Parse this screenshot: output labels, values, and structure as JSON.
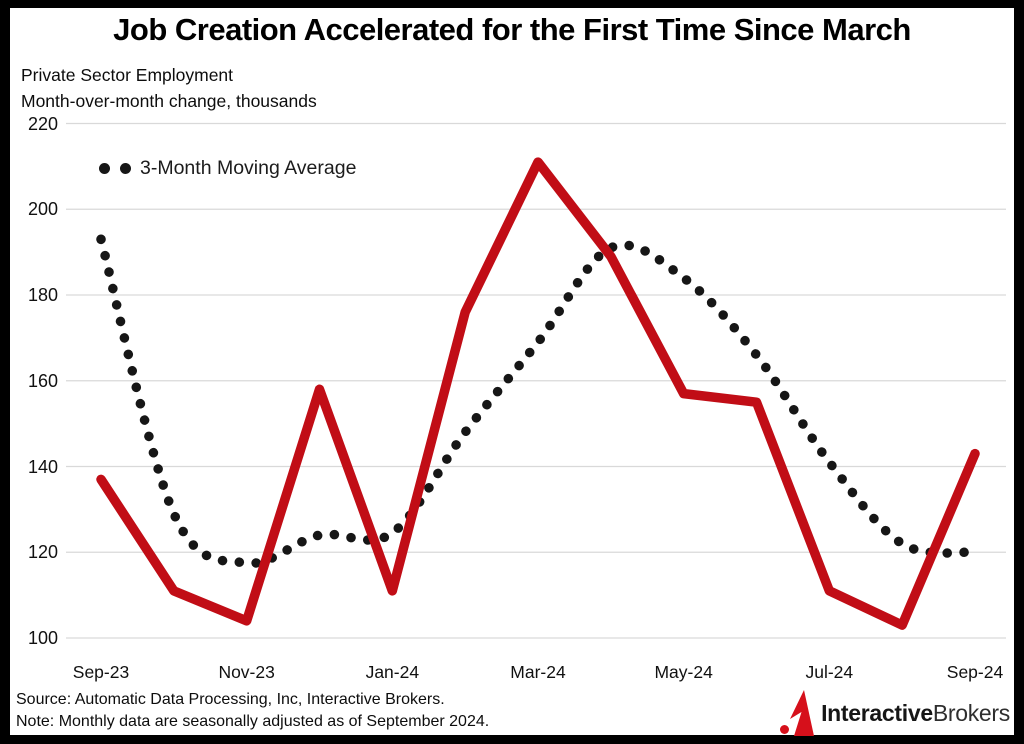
{
  "title": "Job Creation Accelerated for the First Time Since March",
  "subtitle_line1": "Private Sector Employment",
  "subtitle_line2": "Month-over-month change, thousands",
  "legend": {
    "label": "3-Month Moving Average"
  },
  "footer": {
    "source": "Source: Automatic Data Processing, Inc, Interactive Brokers.",
    "note": "Note: Monthly data are seasonally adjusted as of September 2024."
  },
  "logo": {
    "part1": "Interactive",
    "part2": "Brokers"
  },
  "colors": {
    "line_red": "#c10d16",
    "dots_black": "#161616",
    "grid": "#d9d9d9",
    "logo_red": "#d6101b",
    "background": "#ffffff",
    "frame": "#000000"
  },
  "chart_data": {
    "type": "line",
    "months": [
      "Sep-23",
      "Oct-23",
      "Nov-23",
      "Dec-23",
      "Jan-24",
      "Feb-24",
      "Mar-24",
      "Apr-24",
      "May-24",
      "Jun-24",
      "Jul-24",
      "Aug-24",
      "Sep-24"
    ],
    "x_tick_labels": [
      "Sep-23",
      "Nov-23",
      "Jan-24",
      "Mar-24",
      "May-24",
      "Jul-24",
      "Sep-24"
    ],
    "x_tick_month_indices": [
      0,
      2,
      4,
      6,
      8,
      10,
      12
    ],
    "series": [
      {
        "name": "Private sector employment, month-over-month change",
        "style": "solid-red",
        "values": [
          137,
          111,
          104,
          158,
          111,
          176,
          211,
          189,
          157,
          155,
          111,
          103,
          143
        ]
      },
      {
        "name": "3-Month Moving Average",
        "style": "dotted-black",
        "values": [
          193,
          129,
          117.5,
          124,
          124.5,
          148,
          169,
          191,
          184,
          166,
          141,
          122,
          120
        ]
      }
    ],
    "ylim": [
      100,
      220
    ],
    "yticks": [
      220,
      200,
      180,
      160,
      140,
      120,
      100
    ],
    "grid": "horizontal",
    "legend_position": "top-left-inside"
  }
}
